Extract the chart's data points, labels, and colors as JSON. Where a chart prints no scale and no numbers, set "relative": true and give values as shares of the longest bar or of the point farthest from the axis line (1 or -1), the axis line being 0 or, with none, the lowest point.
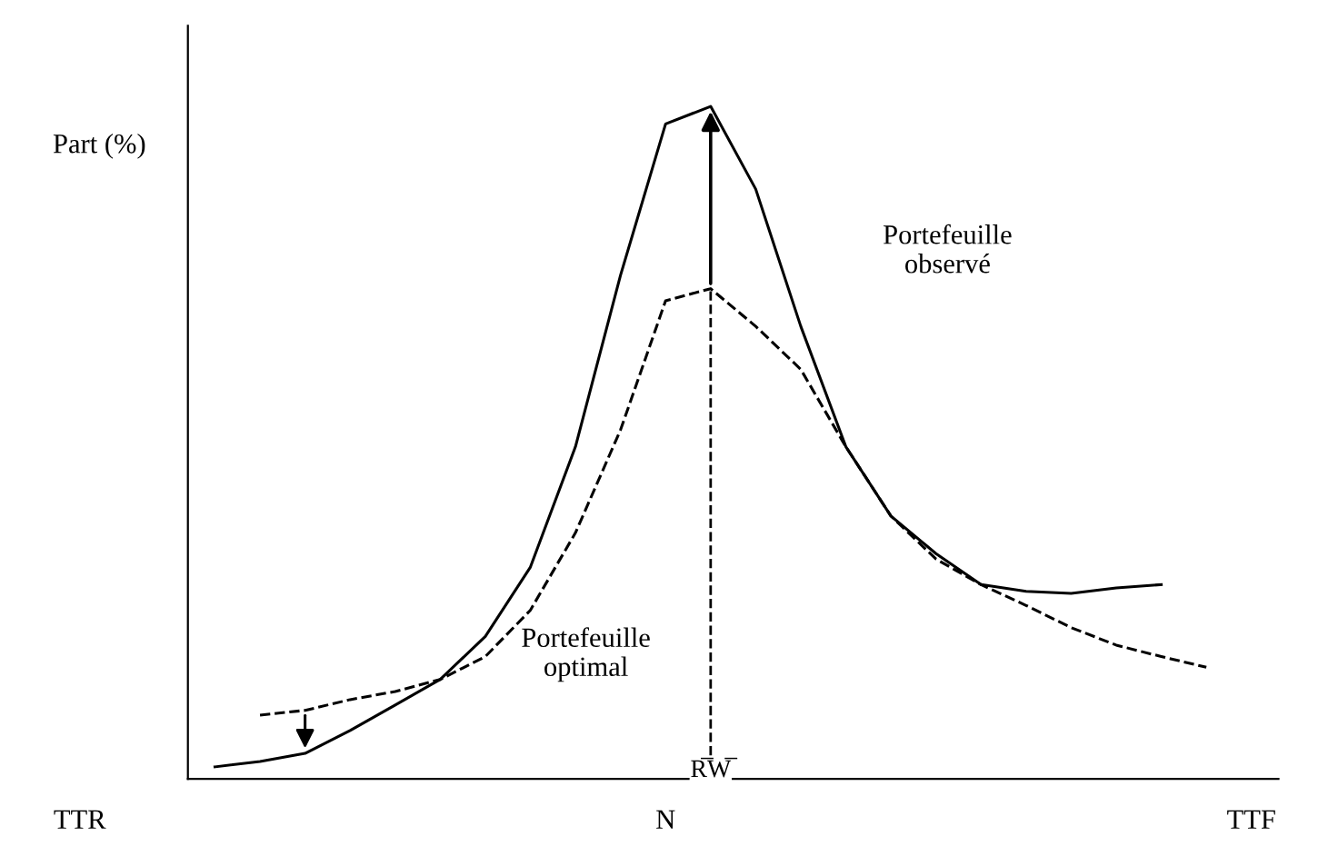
{
  "chart_data": {
    "type": "line",
    "relative": true,
    "ylabel": "Part (%)",
    "categories": [
      "TTR",
      null,
      null,
      null,
      null,
      null,
      null,
      null,
      null,
      null,
      null,
      null,
      null,
      "N",
      null,
      null,
      null,
      null,
      null,
      null,
      null,
      null,
      null,
      null,
      null,
      null,
      "TTF"
    ],
    "series": [
      {
        "color": "#000000",
        "line_style": "solid",
        "values": [
          null,
          null,
          null,
          0.018,
          0.026,
          0.038,
          0.072,
          0.11,
          0.148,
          0.212,
          0.315,
          0.494,
          0.749,
          0.974,
          1.0,
          0.877,
          0.673,
          0.494,
          0.391,
          0.335,
          0.289,
          0.279,
          0.276,
          0.284,
          0.289,
          null,
          null
        ]
      },
      {
        "color": "#000000",
        "line_style": "dashed",
        "values": [
          null,
          null,
          null,
          null,
          0.095,
          0.102,
          0.118,
          0.13,
          0.148,
          0.182,
          0.251,
          0.366,
          0.519,
          0.711,
          0.729,
          0.673,
          0.609,
          0.494,
          0.391,
          0.327,
          0.289,
          0.258,
          0.225,
          0.199,
          0.182,
          0.166,
          null
        ]
      }
    ],
    "annotations": [
      "Portefeuille\nobservé",
      "Portefeuille\noptimal",
      "R̅W̅"
    ],
    "grid": false,
    "legend": false,
    "marker": "none"
  }
}
